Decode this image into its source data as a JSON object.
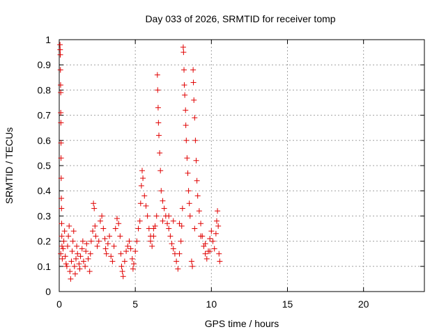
{
  "chart_data": {
    "type": "scatter",
    "title": "Day 033 of 2026, SRMTID for receiver tomp",
    "xlabel": "GPS time / hours",
    "ylabel": "SRMTID / TECUs",
    "xlim": [
      0,
      24
    ],
    "ylim": [
      0,
      1
    ],
    "xticks": [
      0,
      5,
      10,
      15,
      20
    ],
    "xtick_labels": [
      "0",
      "5",
      "10",
      "15",
      "20"
    ],
    "yticks": [
      0,
      0.1,
      0.2,
      0.3,
      0.4,
      0.5,
      0.6,
      0.7,
      0.8,
      0.9,
      1
    ],
    "ytick_labels": [
      "0",
      "0.1",
      "0.2",
      "0.3",
      "0.4",
      "0.5",
      "0.6",
      "0.7",
      "0.8",
      "0.9",
      "1"
    ],
    "grid": true,
    "marker": "+",
    "marker_color": "#e00000",
    "series": [
      {
        "name": "SRMTID",
        "points": [
          [
            0.05,
            0.98
          ],
          [
            0.06,
            0.96
          ],
          [
            0.07,
            0.94
          ],
          [
            0.08,
            0.88
          ],
          [
            0.09,
            0.82
          ],
          [
            0.1,
            0.79
          ],
          [
            0.1,
            0.71
          ],
          [
            0.11,
            0.67
          ],
          [
            0.12,
            0.59
          ],
          [
            0.12,
            0.53
          ],
          [
            0.13,
            0.45
          ],
          [
            0.14,
            0.37
          ],
          [
            0.15,
            0.33
          ],
          [
            0.16,
            0.27
          ],
          [
            0.17,
            0.22
          ],
          [
            0.18,
            0.18
          ],
          [
            0.1,
            0.15
          ],
          [
            0.2,
            0.13
          ],
          [
            0.25,
            0.17
          ],
          [
            0.3,
            0.2
          ],
          [
            0.35,
            0.24
          ],
          [
            0.4,
            0.14
          ],
          [
            0.45,
            0.11
          ],
          [
            0.5,
            0.1
          ],
          [
            0.55,
            0.18
          ],
          [
            0.6,
            0.22
          ],
          [
            0.65,
            0.26
          ],
          [
            0.7,
            0.08
          ],
          [
            0.75,
            0.05
          ],
          [
            0.8,
            0.12
          ],
          [
            0.85,
            0.16
          ],
          [
            0.9,
            0.2
          ],
          [
            0.95,
            0.24
          ],
          [
            1.0,
            0.1
          ],
          [
            1.05,
            0.07
          ],
          [
            1.1,
            0.13
          ],
          [
            1.15,
            0.18
          ],
          [
            1.2,
            0.15
          ],
          [
            1.3,
            0.11
          ],
          [
            1.35,
            0.09
          ],
          [
            1.4,
            0.14
          ],
          [
            1.5,
            0.17
          ],
          [
            1.55,
            0.2
          ],
          [
            1.6,
            0.12
          ],
          [
            1.7,
            0.1
          ],
          [
            1.75,
            0.16
          ],
          [
            1.8,
            0.19
          ],
          [
            1.9,
            0.13
          ],
          [
            2.0,
            0.08
          ],
          [
            2.05,
            0.15
          ],
          [
            2.1,
            0.2
          ],
          [
            2.2,
            0.24
          ],
          [
            2.25,
            0.35
          ],
          [
            2.3,
            0.33
          ],
          [
            2.35,
            0.26
          ],
          [
            2.4,
            0.22
          ],
          [
            2.5,
            0.18
          ],
          [
            2.6,
            0.2
          ],
          [
            2.7,
            0.28
          ],
          [
            2.8,
            0.3
          ],
          [
            2.9,
            0.25
          ],
          [
            3.0,
            0.21
          ],
          [
            3.05,
            0.17
          ],
          [
            3.1,
            0.15
          ],
          [
            3.2,
            0.19
          ],
          [
            3.3,
            0.22
          ],
          [
            3.4,
            0.14
          ],
          [
            3.5,
            0.12
          ],
          [
            3.6,
            0.18
          ],
          [
            3.7,
            0.25
          ],
          [
            3.8,
            0.29
          ],
          [
            3.9,
            0.27
          ],
          [
            4.0,
            0.22
          ],
          [
            4.05,
            0.15
          ],
          [
            4.1,
            0.1
          ],
          [
            4.15,
            0.08
          ],
          [
            4.2,
            0.06
          ],
          [
            4.3,
            0.12
          ],
          [
            4.4,
            0.16
          ],
          [
            4.5,
            0.18
          ],
          [
            4.6,
            0.2
          ],
          [
            4.7,
            0.17
          ],
          [
            4.8,
            0.13
          ],
          [
            4.85,
            0.09
          ],
          [
            4.9,
            0.11
          ],
          [
            5.0,
            0.16
          ],
          [
            5.1,
            0.2
          ],
          [
            5.2,
            0.25
          ],
          [
            5.3,
            0.28
          ],
          [
            5.35,
            0.35
          ],
          [
            5.4,
            0.42
          ],
          [
            5.45,
            0.48
          ],
          [
            5.5,
            0.45
          ],
          [
            5.6,
            0.38
          ],
          [
            5.7,
            0.34
          ],
          [
            5.8,
            0.3
          ],
          [
            5.9,
            0.25
          ],
          [
            6.0,
            0.2
          ],
          [
            6.1,
            0.18
          ],
          [
            6.2,
            0.22
          ],
          [
            6.3,
            0.26
          ],
          [
            6.4,
            0.3
          ],
          [
            6.45,
            0.86
          ],
          [
            6.47,
            0.8
          ],
          [
            6.5,
            0.73
          ],
          [
            6.52,
            0.67
          ],
          [
            6.55,
            0.62
          ],
          [
            6.6,
            0.55
          ],
          [
            6.65,
            0.48
          ],
          [
            6.7,
            0.4
          ],
          [
            6.8,
            0.36
          ],
          [
            6.9,
            0.33
          ],
          [
            7.0,
            0.3
          ],
          [
            7.1,
            0.27
          ],
          [
            7.2,
            0.25
          ],
          [
            7.3,
            0.22
          ],
          [
            7.4,
            0.19
          ],
          [
            7.5,
            0.17
          ],
          [
            7.6,
            0.15
          ],
          [
            7.7,
            0.12
          ],
          [
            7.8,
            0.09
          ],
          [
            7.9,
            0.15
          ],
          [
            8.0,
            0.2
          ],
          [
            8.05,
            0.26
          ],
          [
            8.1,
            0.33
          ],
          [
            8.15,
            0.97
          ],
          [
            8.17,
            0.95
          ],
          [
            8.2,
            0.88
          ],
          [
            8.22,
            0.82
          ],
          [
            8.25,
            0.78
          ],
          [
            8.3,
            0.72
          ],
          [
            8.32,
            0.66
          ],
          [
            8.35,
            0.6
          ],
          [
            8.4,
            0.53
          ],
          [
            8.45,
            0.47
          ],
          [
            8.5,
            0.4
          ],
          [
            8.55,
            0.35
          ],
          [
            8.6,
            0.3
          ],
          [
            8.7,
            0.12
          ],
          [
            8.75,
            0.1
          ],
          [
            8.8,
            0.88
          ],
          [
            8.82,
            0.83
          ],
          [
            8.85,
            0.76
          ],
          [
            8.9,
            0.69
          ],
          [
            8.95,
            0.6
          ],
          [
            9.0,
            0.52
          ],
          [
            9.05,
            0.44
          ],
          [
            9.1,
            0.38
          ],
          [
            9.2,
            0.32
          ],
          [
            9.3,
            0.27
          ],
          [
            9.4,
            0.22
          ],
          [
            9.5,
            0.18
          ],
          [
            9.6,
            0.15
          ],
          [
            9.7,
            0.13
          ],
          [
            9.8,
            0.16
          ],
          [
            9.9,
            0.21
          ],
          [
            10.0,
            0.24
          ],
          [
            10.1,
            0.2
          ],
          [
            10.2,
            0.17
          ],
          [
            10.3,
            0.23
          ],
          [
            10.35,
            0.28
          ],
          [
            10.4,
            0.32
          ],
          [
            10.45,
            0.26
          ],
          [
            10.5,
            0.15
          ],
          [
            10.55,
            0.12
          ],
          [
            6.0,
            0.22
          ],
          [
            6.2,
            0.25
          ],
          [
            6.8,
            0.28
          ],
          [
            7.2,
            0.3
          ],
          [
            7.5,
            0.28
          ],
          [
            7.9,
            0.27
          ],
          [
            8.9,
            0.25
          ],
          [
            9.3,
            0.22
          ],
          [
            9.6,
            0.19
          ],
          [
            9.9,
            0.16
          ]
        ]
      }
    ]
  }
}
